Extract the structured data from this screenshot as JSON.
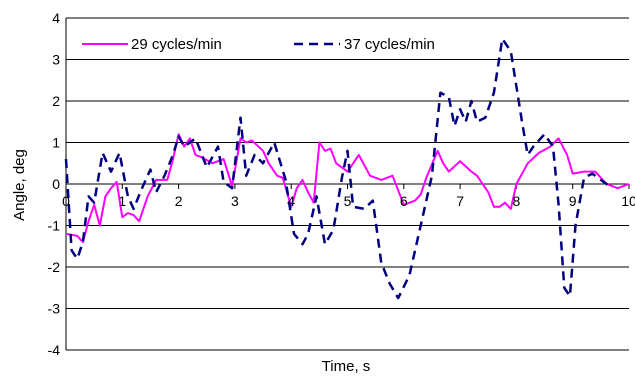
{
  "chart_data": {
    "type": "line",
    "title": "",
    "xlabel": "Time, s",
    "ylabel": "Angle, deg",
    "xlim": [
      0,
      10
    ],
    "ylim": [
      -4,
      4
    ],
    "x_ticks": [
      "0",
      "1",
      "2",
      "3",
      "4",
      "5",
      "6",
      "7",
      "8",
      "9",
      "10"
    ],
    "y_ticks": [
      "-4",
      "-3",
      "-2",
      "-1",
      "0",
      "1",
      "2",
      "3",
      "4"
    ],
    "grid": "horizontal",
    "legend": "top-left",
    "series": [
      {
        "name": "29 cycles/min",
        "color": "#ff00ff",
        "dash": "solid",
        "x": [
          0.0,
          0.2,
          0.3,
          0.4,
          0.5,
          0.6,
          0.7,
          0.8,
          0.9,
          1.0,
          1.1,
          1.2,
          1.3,
          1.45,
          1.6,
          1.8,
          1.9,
          2.0,
          2.1,
          2.2,
          2.3,
          2.4,
          2.6,
          2.8,
          2.95,
          3.1,
          3.2,
          3.3,
          3.5,
          3.6,
          3.75,
          3.85,
          4.0,
          4.1,
          4.2,
          4.3,
          4.4,
          4.5,
          4.6,
          4.7,
          4.8,
          5.0,
          5.2,
          5.4,
          5.6,
          5.8,
          6.0,
          6.2,
          6.3,
          6.4,
          6.6,
          6.7,
          6.8,
          7.0,
          7.2,
          7.3,
          7.5,
          7.6,
          7.7,
          7.8,
          7.9,
          8.0,
          8.2,
          8.4,
          8.6,
          8.75,
          8.9,
          9.0,
          9.2,
          9.4,
          9.6,
          9.8,
          10.0
        ],
        "y": [
          -1.2,
          -1.25,
          -1.4,
          -0.9,
          -0.5,
          -1.0,
          -0.3,
          -0.1,
          0.05,
          -0.8,
          -0.7,
          -0.75,
          -0.9,
          -0.3,
          0.1,
          0.1,
          0.6,
          1.2,
          0.9,
          1.1,
          0.7,
          0.65,
          0.5,
          0.6,
          -0.05,
          1.1,
          1.0,
          1.05,
          0.8,
          0.5,
          0.2,
          0.15,
          -0.55,
          -0.1,
          0.1,
          -0.2,
          -0.45,
          1.0,
          0.8,
          0.85,
          0.5,
          0.3,
          0.7,
          0.2,
          0.1,
          0.2,
          -0.5,
          -0.4,
          -0.25,
          0.15,
          0.8,
          0.5,
          0.3,
          0.55,
          0.3,
          0.2,
          -0.2,
          -0.55,
          -0.55,
          -0.45,
          -0.6,
          0.0,
          0.5,
          0.75,
          0.9,
          1.1,
          0.7,
          0.25,
          0.3,
          0.3,
          0.0,
          -0.1,
          0.0
        ]
      },
      {
        "name": "37 cycles/min",
        "color": "#000080",
        "dash": "dashed",
        "x": [
          0.0,
          0.1,
          0.2,
          0.3,
          0.4,
          0.5,
          0.65,
          0.8,
          0.95,
          1.1,
          1.2,
          1.35,
          1.5,
          1.6,
          1.75,
          1.9,
          2.0,
          2.1,
          2.3,
          2.5,
          2.7,
          2.8,
          2.95,
          3.1,
          3.2,
          3.35,
          3.5,
          3.7,
          3.9,
          4.05,
          4.2,
          4.3,
          4.45,
          4.6,
          4.75,
          4.9,
          5.0,
          5.1,
          5.3,
          5.45,
          5.6,
          5.75,
          5.9,
          6.1,
          6.3,
          6.5,
          6.65,
          6.8,
          6.9,
          7.0,
          7.1,
          7.2,
          7.3,
          7.45,
          7.6,
          7.75,
          7.9,
          8.1,
          8.2,
          8.3,
          8.5,
          8.65,
          8.75,
          8.85,
          8.95,
          9.05,
          9.2,
          9.35,
          9.5,
          9.7
        ],
        "y": [
          0.6,
          -1.6,
          -1.8,
          -1.4,
          -0.3,
          -0.45,
          0.75,
          0.3,
          0.75,
          -0.3,
          -0.6,
          -0.1,
          0.35,
          -0.2,
          0.2,
          0.7,
          1.15,
          0.9,
          1.1,
          0.4,
          0.9,
          0.05,
          -0.1,
          1.6,
          0.2,
          0.7,
          0.5,
          1.0,
          0.1,
          -1.2,
          -1.45,
          -1.2,
          -0.3,
          -1.45,
          -1.1,
          0.15,
          0.8,
          -0.55,
          -0.6,
          -0.4,
          -1.9,
          -2.4,
          -2.75,
          -2.2,
          -1.0,
          0.2,
          2.2,
          2.1,
          1.4,
          1.8,
          1.5,
          2.0,
          1.5,
          1.6,
          2.2,
          3.5,
          3.2,
          1.5,
          0.7,
          0.9,
          1.2,
          0.9,
          -0.5,
          -2.5,
          -2.7,
          -1.0,
          0.15,
          0.25,
          0.1,
          -0.1
        ]
      }
    ]
  }
}
